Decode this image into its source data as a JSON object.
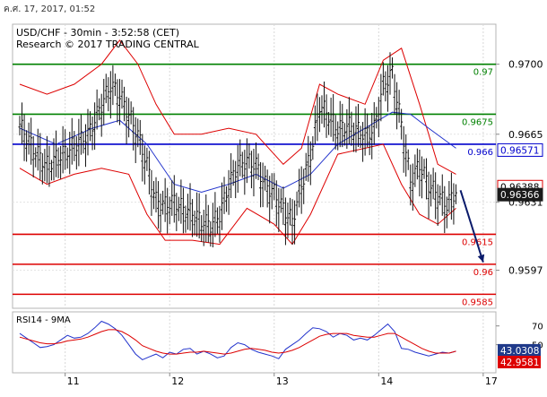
{
  "header": {
    "timestamp": "ค.ศ. 17, 2017, 01:52",
    "title": "USD/CHF - 30min - 3:52:58 (CET)",
    "credit": "Research © 2017 TRADING CENTRAL"
  },
  "colors": {
    "green_level": "#008000",
    "red_level": "#dd0000",
    "blue_level": "#0000cc",
    "price_bar": "#111111",
    "bollinger": "#dd0000",
    "moving_average": "#2233cc",
    "arrow": "#0a1a6a",
    "rsi_line": "#2233cc",
    "rsi_ma": "#dd0000",
    "current_price_box": "#1a1a1a",
    "rsi_label_blue": "#1f3a8a",
    "rsi_label_red": "#dd0000"
  },
  "chart_data": [
    {
      "type": "line",
      "subtype": "candlestick-bars with bollinger bands and support/resistance levels",
      "symbol": "USD/CHF",
      "timeframe": "30min",
      "x_tick_labels": [
        "11",
        "12",
        "13",
        "14",
        "17"
      ],
      "y_tick_labels": [
        "0.9700",
        "0.9665",
        "0.9631",
        "0.9597"
      ],
      "ylim": [
        0.9578,
        0.972
      ],
      "levels": [
        {
          "label": "0.97",
          "value": 0.97,
          "color": "green"
        },
        {
          "label": "0.9675",
          "value": 0.9675,
          "color": "green"
        },
        {
          "label": "0.966",
          "value": 0.966,
          "color": "blue"
        },
        {
          "label": "0.9615",
          "value": 0.9615,
          "color": "red"
        },
        {
          "label": "0.96",
          "value": 0.96,
          "color": "red"
        },
        {
          "label": "0.9585",
          "value": 0.9585,
          "color": "red"
        }
      ],
      "price_tags": [
        {
          "label": "0.96571",
          "value": 0.96571,
          "style": "blue-outline"
        },
        {
          "label": "0.96388",
          "value": 0.96388,
          "style": "red-outline"
        },
        {
          "label": "0.96366",
          "value": 0.96366,
          "style": "dark-filled"
        }
      ],
      "price_path": [
        [
          0,
          0.967
        ],
        [
          3,
          0.9658
        ],
        [
          6,
          0.965
        ],
        [
          9,
          0.9655
        ],
        [
          12,
          0.966
        ],
        [
          15,
          0.9665
        ],
        [
          18,
          0.968
        ],
        [
          20,
          0.969
        ],
        [
          22,
          0.9685
        ],
        [
          24,
          0.9675
        ],
        [
          26,
          0.9665
        ],
        [
          28,
          0.965
        ],
        [
          30,
          0.9632
        ],
        [
          32,
          0.963
        ],
        [
          34,
          0.9632
        ],
        [
          36,
          0.9628
        ],
        [
          38,
          0.9626
        ],
        [
          40,
          0.9622
        ],
        [
          42,
          0.962
        ],
        [
          44,
          0.9625
        ],
        [
          46,
          0.964
        ],
        [
          48,
          0.965
        ],
        [
          50,
          0.9652
        ],
        [
          52,
          0.965
        ],
        [
          54,
          0.964
        ],
        [
          56,
          0.9636
        ],
        [
          58,
          0.9628
        ],
        [
          60,
          0.9622
        ],
        [
          62,
          0.964
        ],
        [
          64,
          0.9655
        ],
        [
          66,
          0.968
        ],
        [
          68,
          0.9675
        ],
        [
          70,
          0.9668
        ],
        [
          72,
          0.967
        ],
        [
          74,
          0.9668
        ],
        [
          76,
          0.9665
        ],
        [
          78,
          0.9668
        ],
        [
          80,
          0.969
        ],
        [
          82,
          0.9696
        ],
        [
          84,
          0.967
        ],
        [
          86,
          0.9642
        ],
        [
          88,
          0.965
        ],
        [
          90,
          0.964
        ],
        [
          92,
          0.9635
        ],
        [
          94,
          0.963
        ],
        [
          96,
          0.9637
        ]
      ],
      "bollinger_upper": [
        [
          0,
          0.969
        ],
        [
          6,
          0.9685
        ],
        [
          12,
          0.969
        ],
        [
          18,
          0.97
        ],
        [
          22,
          0.9712
        ],
        [
          26,
          0.97
        ],
        [
          30,
          0.968
        ],
        [
          34,
          0.9665
        ],
        [
          40,
          0.9665
        ],
        [
          46,
          0.9668
        ],
        [
          52,
          0.9665
        ],
        [
          58,
          0.965
        ],
        [
          62,
          0.9658
        ],
        [
          66,
          0.969
        ],
        [
          70,
          0.9685
        ],
        [
          76,
          0.968
        ],
        [
          80,
          0.9702
        ],
        [
          84,
          0.9708
        ],
        [
          88,
          0.968
        ],
        [
          92,
          0.965
        ],
        [
          96,
          0.9645
        ]
      ],
      "bollinger_lower": [
        [
          0,
          0.9648
        ],
        [
          6,
          0.964
        ],
        [
          12,
          0.9645
        ],
        [
          18,
          0.9648
        ],
        [
          24,
          0.9645
        ],
        [
          28,
          0.9625
        ],
        [
          32,
          0.9612
        ],
        [
          38,
          0.9612
        ],
        [
          44,
          0.961
        ],
        [
          50,
          0.9628
        ],
        [
          56,
          0.962
        ],
        [
          60,
          0.961
        ],
        [
          64,
          0.9625
        ],
        [
          70,
          0.9655
        ],
        [
          76,
          0.9658
        ],
        [
          80,
          0.966
        ],
        [
          84,
          0.964
        ],
        [
          88,
          0.9625
        ],
        [
          92,
          0.962
        ],
        [
          96,
          0.9628
        ]
      ],
      "moving_average": [
        [
          0,
          0.9668
        ],
        [
          8,
          0.966
        ],
        [
          16,
          0.9668
        ],
        [
          22,
          0.9672
        ],
        [
          28,
          0.966
        ],
        [
          34,
          0.964
        ],
        [
          40,
          0.9636
        ],
        [
          46,
          0.964
        ],
        [
          52,
          0.9645
        ],
        [
          58,
          0.9638
        ],
        [
          64,
          0.9645
        ],
        [
          70,
          0.966
        ],
        [
          76,
          0.9668
        ],
        [
          82,
          0.9676
        ],
        [
          86,
          0.9675
        ],
        [
          90,
          0.9668
        ],
        [
          96,
          0.9658
        ]
      ],
      "forecast_arrow": {
        "from": [
          97,
          0.9637
        ],
        "to": [
          102,
          0.9601
        ]
      }
    },
    {
      "type": "line",
      "title": "RSI14 - 9MA",
      "y_tick_labels": [
        "70",
        "50"
      ],
      "ylim": [
        20,
        85
      ],
      "value_tags": [
        {
          "label": "43.0308",
          "value": 43.0308,
          "series": "RSI14"
        },
        {
          "label": "42.9581",
          "value": 42.9581,
          "series": "9MA"
        }
      ],
      "series": [
        {
          "name": "RSI14",
          "values": [
            62,
            57,
            52,
            47,
            48,
            50,
            55,
            60,
            57,
            58,
            62,
            68,
            75,
            72,
            67,
            60,
            50,
            40,
            34,
            37,
            40,
            36,
            42,
            40,
            45,
            46,
            40,
            43,
            40,
            36,
            38,
            47,
            52,
            50,
            45,
            42,
            40,
            38,
            35,
            45,
            50,
            55,
            62,
            68,
            67,
            64,
            58,
            62,
            60,
            55,
            57,
            55,
            60,
            66,
            72,
            64,
            46,
            45,
            42,
            40,
            38,
            40,
            42,
            41,
            43
          ]
        },
        {
          "name": "9MA",
          "values": [
            58,
            56,
            54,
            52,
            51,
            51,
            52,
            54,
            55,
            56,
            58,
            61,
            64,
            66,
            66,
            64,
            60,
            55,
            49,
            46,
            43,
            41,
            40,
            40,
            41,
            42,
            42,
            43,
            42,
            41,
            40,
            41,
            43,
            45,
            46,
            45,
            44,
            42,
            41,
            42,
            44,
            47,
            51,
            55,
            59,
            61,
            62,
            62,
            62,
            60,
            59,
            58,
            58,
            60,
            62,
            62,
            58,
            54,
            50,
            46,
            43,
            41,
            41,
            41,
            43
          ]
        }
      ]
    }
  ]
}
